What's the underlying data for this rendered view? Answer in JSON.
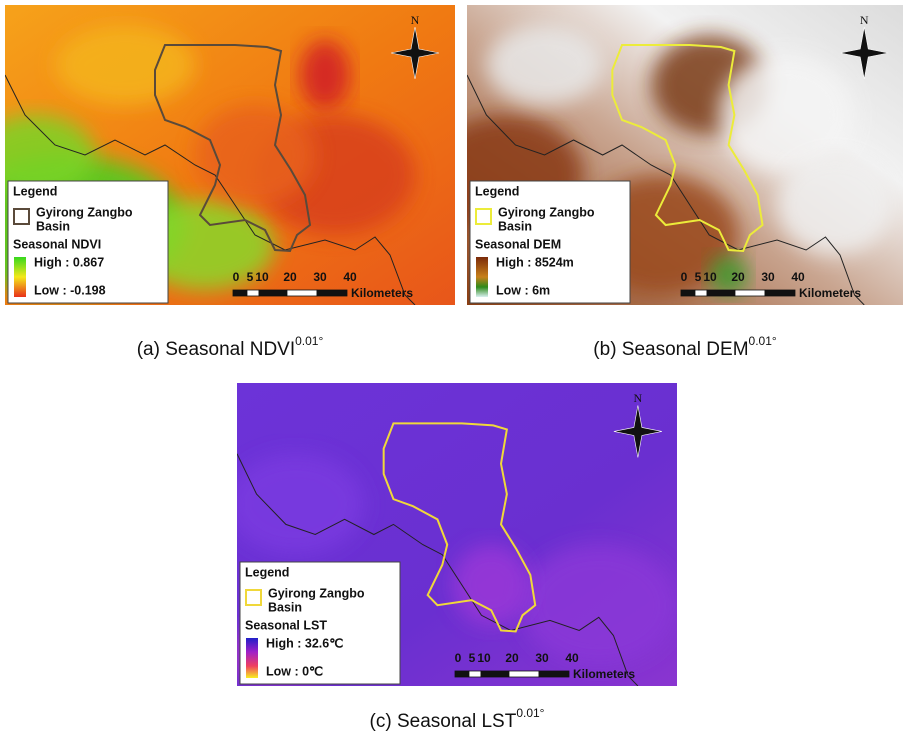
{
  "panels": [
    {
      "caption": "(a) Seasonal NDVI",
      "caption_sup": "0.01°",
      "north": "N",
      "legend_title": "Legend",
      "basin_label": [
        "Gyirong Zangbo",
        "Basin"
      ],
      "layer_title": "Seasonal NDVI",
      "high": "High : 0.867",
      "low": "Low : -0.198",
      "scale_labels": [
        "0",
        "5",
        "10",
        "20",
        "30",
        "40"
      ],
      "scale_unit": "Kilometers"
    },
    {
      "caption": "(b) Seasonal DEM",
      "caption_sup": "0.01°",
      "north": "N",
      "legend_title": "Legend",
      "basin_label": [
        "Gyirong Zangbo",
        "Basin"
      ],
      "layer_title": "Seasonal DEM",
      "high": "High : 8524m",
      "low": "Low : 6m",
      "scale_labels": [
        "0",
        "5",
        "10",
        "20",
        "30",
        "40"
      ],
      "scale_unit": "Kilometers"
    },
    {
      "caption": "(c) Seasonal LST",
      "caption_sup": "0.01°",
      "north": "N",
      "legend_title": "Legend",
      "basin_label": [
        "Gyirong Zangbo",
        "Basin"
      ],
      "layer_title": "Seasonal LST",
      "high": "High : 32.6℃",
      "low": "Low : 0℃",
      "scale_labels": [
        "0",
        "5",
        "10",
        "20",
        "30",
        "40"
      ],
      "scale_unit": "Kilometers"
    }
  ]
}
